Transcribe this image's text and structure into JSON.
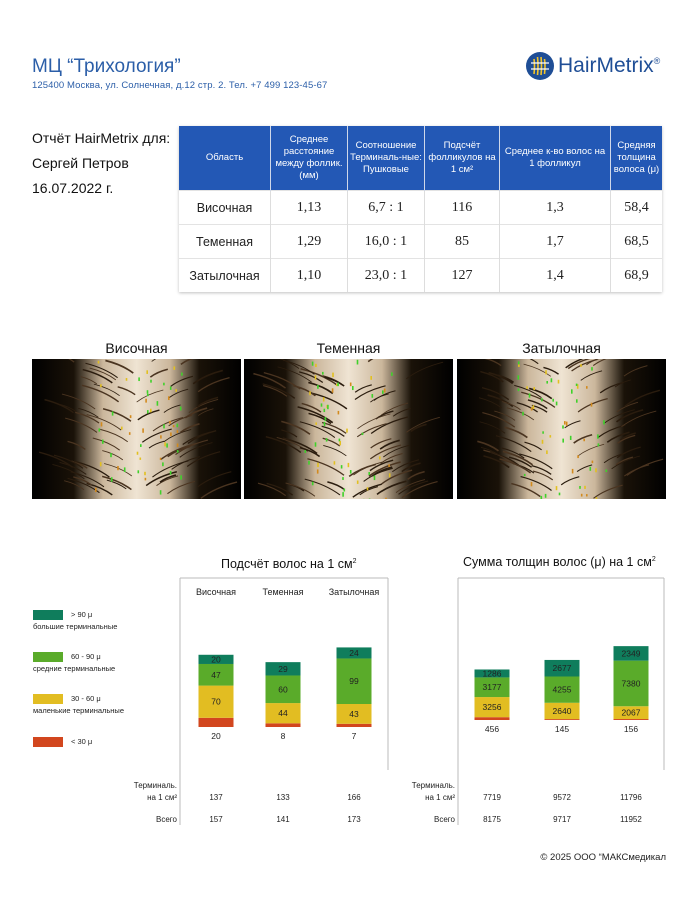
{
  "header": {
    "clinic_name": "МЦ “Трихология”",
    "address": "125400 Москва, ул. Солнечная, д.12 стр. 2. Тел. +7 499 123-45-67",
    "logo_text": "HairMetrix",
    "logo_mark": "®"
  },
  "report": {
    "title": "Отчёт HairMetrix для:",
    "patient": "Сергей Петров",
    "date": "16.07.2022 г."
  },
  "table": {
    "headers": [
      "Область",
      "Среднее расстояние между фоллик. (мм)",
      "Соотношение Терминаль-ные: Пушковые",
      "Подсчёт фолликулов на 1 см²",
      "Среднее к-во волос на 1 фолликул",
      "Средняя толщина волоса (μ)"
    ],
    "rows": [
      [
        "Височная",
        "1,13",
        "6,7 : 1",
        "116",
        "1,3",
        "58,4"
      ],
      [
        "Теменная",
        "1,29",
        "16,0 : 1",
        "85",
        "1,7",
        "68,5"
      ],
      [
        "Затылочная",
        "1,10",
        "23,0 : 1",
        "127",
        "1,4",
        "68,9"
      ]
    ]
  },
  "photos": [
    {
      "label": "Височная"
    },
    {
      "label": "Теменная"
    },
    {
      "label": "Затылочная"
    }
  ],
  "legend": [
    {
      "range": "> 90 μ",
      "desc": "большие терминальные",
      "color": "#0f7d5c"
    },
    {
      "range": "60 - 90 μ",
      "desc": "средние терминальные",
      "color": "#5aab2a"
    },
    {
      "range": "30 - 60 μ",
      "desc": "маленькие терминальные",
      "color": "#e2bd22"
    },
    {
      "range": "< 30 μ",
      "desc": "",
      "color": "#d2461e"
    }
  ],
  "chart_data": [
    {
      "type": "bar",
      "title": "Подсчёт волос на 1 см²",
      "categories": [
        "Височная",
        "Теменная",
        "Затылочная"
      ],
      "stacked": true,
      "series": [
        {
          "name": "> 90 μ",
          "values": [
            20,
            29,
            24
          ]
        },
        {
          "name": "60 - 90 μ",
          "values": [
            47,
            60,
            99
          ]
        },
        {
          "name": "30 - 60 μ",
          "values": [
            70,
            44,
            43
          ]
        },
        {
          "name": "< 30 μ",
          "values": [
            20,
            8,
            7
          ]
        }
      ],
      "summary_labels": [
        "Терминаль. на 1 см²",
        "Всего"
      ],
      "terminal_totals": [
        137,
        133,
        166
      ],
      "totals": [
        157,
        141,
        173
      ]
    },
    {
      "type": "bar",
      "title": "Сумма толщин волос (μ) на 1 см²",
      "categories": [
        "Височная",
        "Теменная",
        "Затылочная"
      ],
      "stacked": true,
      "series": [
        {
          "name": "> 90 μ",
          "values": [
            1286,
            2677,
            2349
          ]
        },
        {
          "name": "60 - 90 μ",
          "values": [
            3177,
            4255,
            7380
          ]
        },
        {
          "name": "30 - 60 μ",
          "values": [
            3256,
            2640,
            2067
          ]
        },
        {
          "name": "< 30 μ",
          "values": [
            456,
            145,
            156
          ]
        }
      ],
      "summary_labels": [
        "Терминаль. на 1 см²",
        "Всего"
      ],
      "terminal_totals": [
        7719,
        9572,
        11796
      ],
      "totals": [
        8175,
        9717,
        11952
      ]
    }
  ],
  "footer": "© 2025 ООО “МАКСмедикал"
}
